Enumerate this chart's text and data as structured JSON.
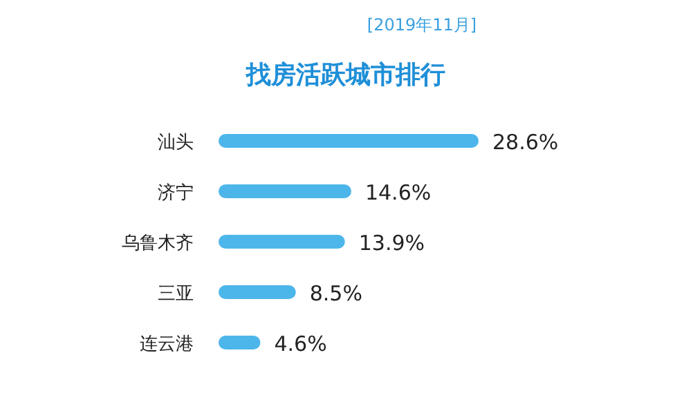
{
  "chart_data": {
    "type": "bar",
    "orientation": "horizontal",
    "title": "找房活跃城市排行",
    "subtitle": "[2019年11月]",
    "categories": [
      "汕头",
      "济宁",
      "乌鲁木齐",
      "三亚",
      "连云港"
    ],
    "values": [
      28.6,
      14.6,
      13.9,
      8.5,
      4.6
    ],
    "value_labels": [
      "28.6%",
      "14.6%",
      "13.9%",
      "8.5%",
      "4.6%"
    ],
    "color": "#4cb6ea"
  }
}
